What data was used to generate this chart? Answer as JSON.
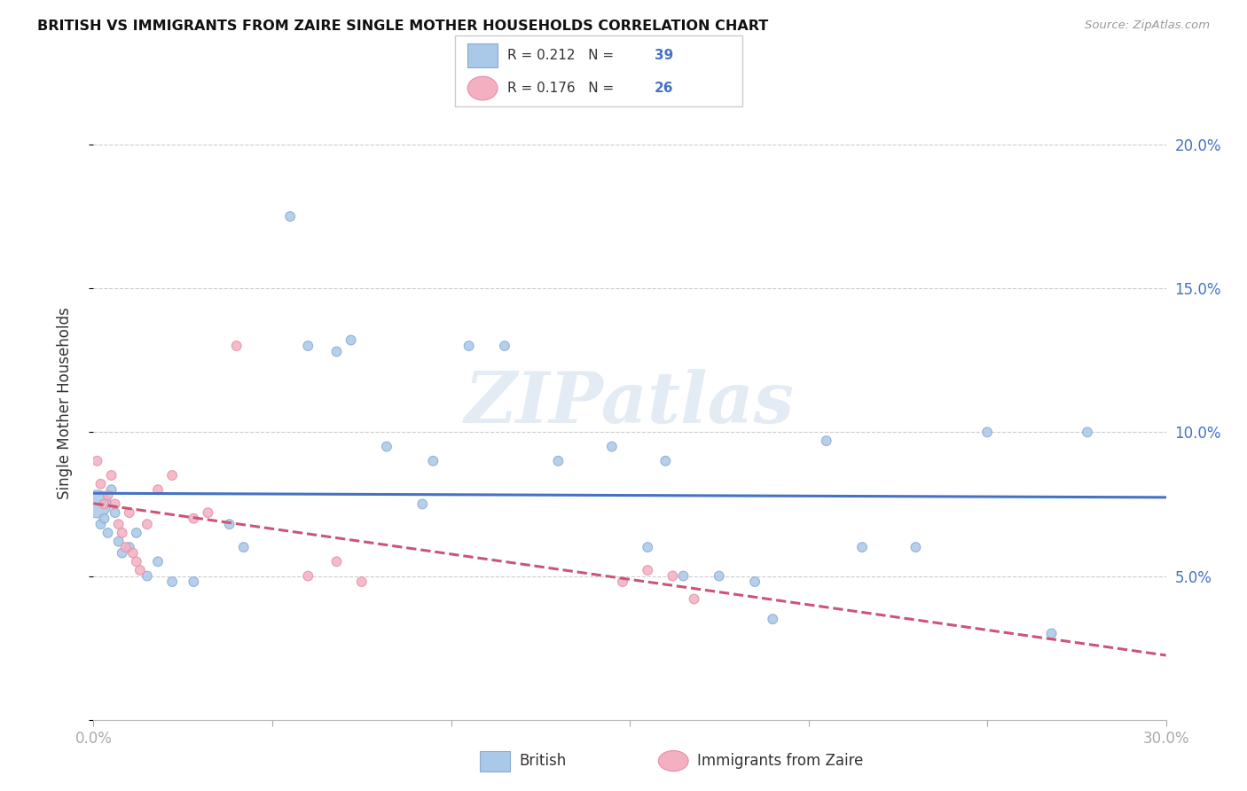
{
  "title": "BRITISH VS IMMIGRANTS FROM ZAIRE SINGLE MOTHER HOUSEHOLDS CORRELATION CHART",
  "source": "Source: ZipAtlas.com",
  "ylabel": "Single Mother Households",
  "watermark": "ZIPatlas",
  "legend_british_r": "R = 0.212",
  "legend_british_n": "N = 39",
  "legend_zaire_r": "R = 0.176",
  "legend_zaire_n": "N = 26",
  "xlim": [
    0.0,
    0.3
  ],
  "ylim": [
    0.0,
    0.22
  ],
  "xticks": [
    0.0,
    0.05,
    0.1,
    0.15,
    0.2,
    0.25,
    0.3
  ],
  "yticks": [
    0.0,
    0.05,
    0.1,
    0.15,
    0.2
  ],
  "ytick_labels": [
    "",
    "5.0%",
    "10.0%",
    "15.0%",
    "20.0%"
  ],
  "british_color": "#aac8e8",
  "british_edge": "#88aad0",
  "zaire_color": "#f4b0c0",
  "zaire_edge": "#e090a8",
  "british_line_color": "#4472c4",
  "zaire_line_color": "#cc5577",
  "grid_color": "#cccccc",
  "british_x": [
    0.001,
    0.002,
    0.003,
    0.004,
    0.005,
    0.006,
    0.007,
    0.008,
    0.01,
    0.012,
    0.015,
    0.018,
    0.022,
    0.028,
    0.038,
    0.042,
    0.055,
    0.06,
    0.068,
    0.072,
    0.082,
    0.092,
    0.095,
    0.105,
    0.115,
    0.13,
    0.145,
    0.16,
    0.175,
    0.19,
    0.205,
    0.215,
    0.23,
    0.155,
    0.165,
    0.185,
    0.25,
    0.268,
    0.278
  ],
  "british_y": [
    0.075,
    0.068,
    0.07,
    0.065,
    0.08,
    0.072,
    0.062,
    0.058,
    0.06,
    0.065,
    0.05,
    0.055,
    0.048,
    0.048,
    0.068,
    0.06,
    0.175,
    0.13,
    0.128,
    0.132,
    0.095,
    0.075,
    0.09,
    0.13,
    0.13,
    0.09,
    0.095,
    0.09,
    0.05,
    0.035,
    0.097,
    0.06,
    0.06,
    0.06,
    0.05,
    0.048,
    0.1,
    0.03,
    0.1
  ],
  "british_size": [
    500,
    60,
    60,
    60,
    60,
    60,
    60,
    60,
    60,
    60,
    60,
    60,
    60,
    60,
    60,
    60,
    60,
    60,
    60,
    60,
    60,
    60,
    60,
    60,
    60,
    60,
    60,
    60,
    60,
    60,
    60,
    60,
    60,
    60,
    60,
    60,
    60,
    60,
    60
  ],
  "zaire_x": [
    0.001,
    0.002,
    0.003,
    0.004,
    0.005,
    0.006,
    0.007,
    0.008,
    0.009,
    0.01,
    0.011,
    0.012,
    0.013,
    0.015,
    0.018,
    0.022,
    0.028,
    0.032,
    0.04,
    0.06,
    0.068,
    0.075,
    0.148,
    0.155,
    0.162,
    0.168
  ],
  "zaire_y": [
    0.09,
    0.082,
    0.075,
    0.078,
    0.085,
    0.075,
    0.068,
    0.065,
    0.06,
    0.072,
    0.058,
    0.055,
    0.052,
    0.068,
    0.08,
    0.085,
    0.07,
    0.072,
    0.13,
    0.05,
    0.055,
    0.048,
    0.048,
    0.052,
    0.05,
    0.042
  ],
  "zaire_size": [
    60,
    60,
    60,
    60,
    60,
    60,
    60,
    60,
    60,
    60,
    60,
    60,
    60,
    60,
    60,
    60,
    60,
    60,
    60,
    60,
    60,
    60,
    60,
    60,
    60,
    60
  ]
}
